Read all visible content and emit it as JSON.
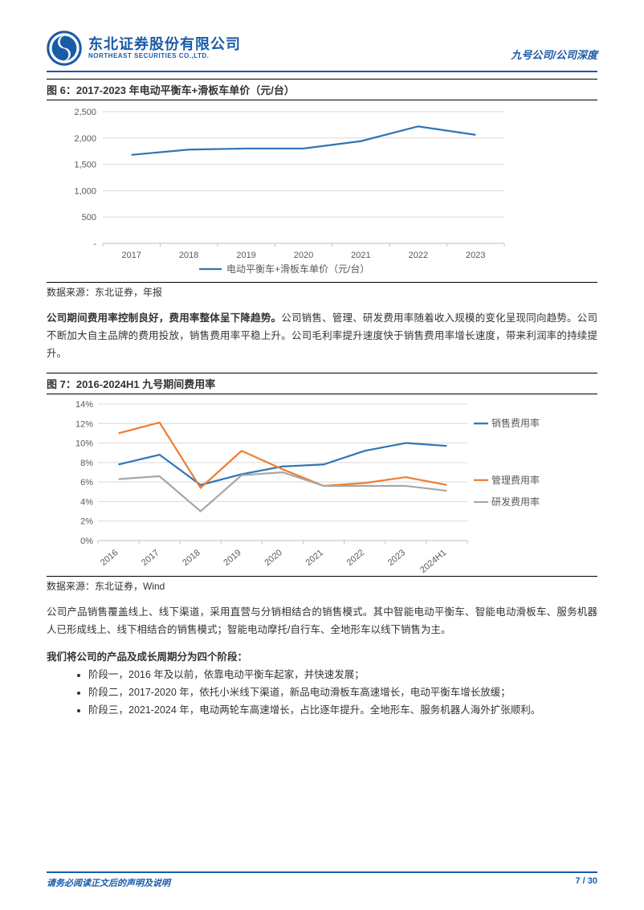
{
  "header": {
    "company_cn": "东北证券股份有限公司",
    "company_en": "NORTHEAST SECURITIES CO.,LTD.",
    "right": "九号公司/公司深度"
  },
  "fig6": {
    "title": "图 6：2017-2023 年电动平衡车+滑板车单价（元/台）",
    "type": "line",
    "categories": [
      "2017",
      "2018",
      "2019",
      "2020",
      "2021",
      "2022",
      "2023"
    ],
    "values": [
      1680,
      1780,
      1800,
      1800,
      1940,
      2220,
      2060
    ],
    "ylim": [
      0,
      2500
    ],
    "ytick_step": 500,
    "yticks": [
      "-",
      "500",
      "1,000",
      "1,500",
      "2,000",
      "2,500"
    ],
    "line_color": "#2e75b6",
    "grid_color": "#d9d9d9",
    "axis_color": "#bfbfbf",
    "tick_font": 11,
    "legend_label": "电动平衡车+滑板车单价（元/台）",
    "source": "数据来源：东北证券，年报"
  },
  "para1_bold": "公司期间费用率控制良好，费用率整体呈下降趋势。",
  "para1_rest": "公司销售、管理、研发费用率随着收入规模的变化呈现同向趋势。公司不断加大自主品牌的费用投放，销售费用率平稳上升。公司毛利率提升速度快于销售费用率增长速度，带来利润率的持续提升。",
  "fig7": {
    "title": "图 7：2016-2024H1 九号期间费用率",
    "type": "line",
    "categories": [
      "2016",
      "2017",
      "2018",
      "2019",
      "2020",
      "2021",
      "2022",
      "2023",
      "2024H1"
    ],
    "ylim": [
      0,
      14
    ],
    "ytick_step": 2,
    "yticks": [
      "0%",
      "2%",
      "4%",
      "6%",
      "8%",
      "10%",
      "12%",
      "14%"
    ],
    "series": [
      {
        "name": "销售费用率",
        "color": "#2e75b6",
        "values": [
          7.8,
          8.8,
          5.7,
          6.8,
          7.6,
          7.8,
          9.2,
          10.0,
          9.7
        ]
      },
      {
        "name": "管理费用率",
        "color": "#ed7d31",
        "values": [
          11.0,
          12.1,
          5.4,
          9.2,
          7.3,
          5.6,
          5.9,
          6.5,
          5.7
        ]
      },
      {
        "name": "研发费用率",
        "color": "#a6a6a6",
        "values": [
          6.3,
          6.6,
          3.0,
          6.7,
          7.0,
          5.6,
          5.6,
          5.6,
          5.1
        ]
      }
    ],
    "grid_color": "#d9d9d9",
    "axis_color": "#bfbfbf",
    "tick_font": 11,
    "source": "数据来源：东北证券，Wind"
  },
  "para2": "公司产品销售覆盖线上、线下渠道，采用直营与分销相结合的销售模式。其中智能电动平衡车、智能电动滑板车、服务机器人已形成线上、线下相结合的销售模式；智能电动摩托/自行车、全地形车以线下销售为主。",
  "stages_intro": "我们将公司的产品及成长周期分为四个阶段：",
  "stages": [
    "阶段一，2016 年及以前，依靠电动平衡车起家，并快速发展；",
    "阶段二，2017-2020 年，依托小米线下渠道，新品电动滑板车高速增长，电动平衡车增长放缓；",
    "阶段三，2021-2024 年，电动两轮车高速增长，占比逐年提升。全地形车、服务机器人海外扩张顺利。"
  ],
  "footer": {
    "left": "请务必阅读正文后的声明及说明",
    "right": "7 / 30"
  }
}
